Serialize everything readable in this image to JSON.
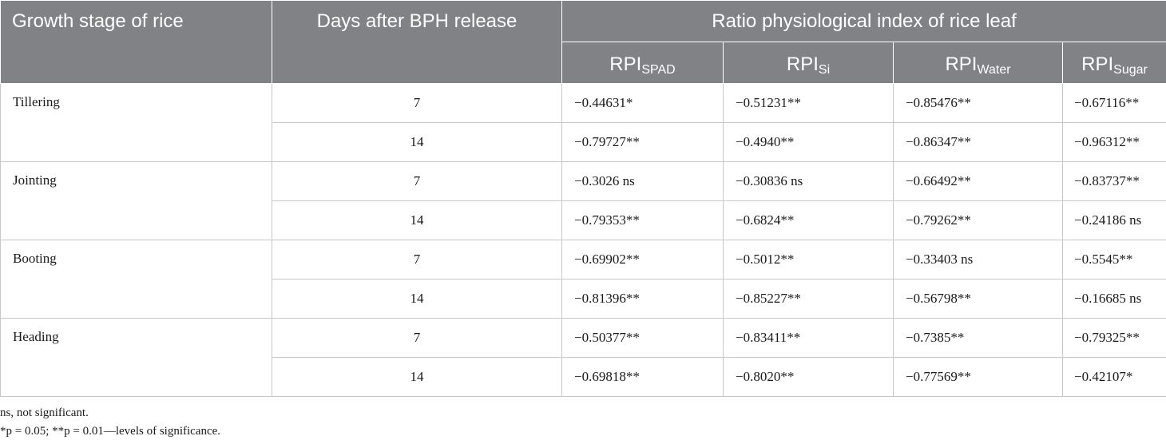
{
  "table": {
    "headers": {
      "growth_stage": "Growth stage of rice",
      "days": "Days after BPH release",
      "ratio_group": "Ratio physiological index of rice leaf",
      "sub": [
        {
          "base": "RPI",
          "sub": "SPAD"
        },
        {
          "base": "RPI",
          "sub": "Si"
        },
        {
          "base": "RPI",
          "sub": "Water"
        },
        {
          "base": "RPI",
          "sub": "Sugar"
        }
      ]
    },
    "groups": [
      {
        "stage": "Tillering",
        "rows": [
          {
            "days": "7",
            "values": [
              "−0.44631*",
              "−0.51231**",
              "−0.85476**",
              "−0.67116**"
            ]
          },
          {
            "days": "14",
            "values": [
              "−0.79727**",
              "−0.4940**",
              "−0.86347**",
              "−0.96312**"
            ]
          }
        ]
      },
      {
        "stage": "Jointing",
        "rows": [
          {
            "days": "7",
            "values": [
              "−0.3026 ns",
              "−0.30836 ns",
              "−0.66492**",
              "−0.83737**"
            ]
          },
          {
            "days": "14",
            "values": [
              "−0.79353**",
              "−0.6824**",
              "−0.79262**",
              "−0.24186 ns"
            ]
          }
        ]
      },
      {
        "stage": "Booting",
        "rows": [
          {
            "days": "7",
            "values": [
              "−0.69902**",
              "−0.5012**",
              "−0.33403 ns",
              "−0.5545**"
            ]
          },
          {
            "days": "14",
            "values": [
              "−0.81396**",
              "−0.85227**",
              "−0.56798**",
              "−0.16685 ns"
            ]
          }
        ]
      },
      {
        "stage": "Heading",
        "rows": [
          {
            "days": "7",
            "values": [
              "−0.50377**",
              "−0.83411**",
              "−0.7385**",
              "−0.79325**"
            ]
          },
          {
            "days": "14",
            "values": [
              "−0.69818**",
              "−0.8020**",
              "−0.77569**",
              "−0.42107*"
            ]
          }
        ]
      }
    ]
  },
  "footnotes": {
    "ns": "ns, not significant.",
    "significance": "*p = 0.05; **p = 0.01—levels of significance."
  },
  "colors": {
    "header_bg": "#808285",
    "header_text": "#ffffff",
    "grid": "#c8c8c8"
  }
}
